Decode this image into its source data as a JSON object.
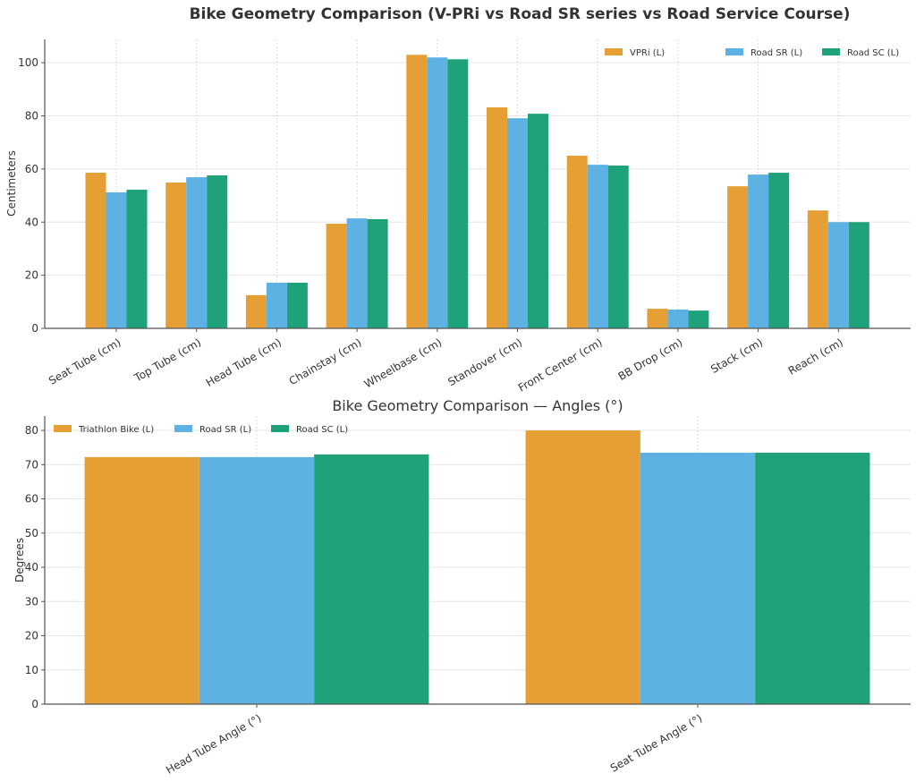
{
  "chart_data": [
    {
      "type": "bar",
      "title": "Bike Geometry Comparison (V-PRi vs Road SR series vs Road Service Course)",
      "xlabel": "",
      "ylabel": "Centimeters",
      "ylim": [
        0,
        108.8
      ],
      "yticks": [
        0,
        20,
        40,
        60,
        80,
        100
      ],
      "grid": true,
      "legend_position": "top-right",
      "categories": [
        "Seat Tube (cm)",
        "Top Tube (cm)",
        "Head Tube (cm)",
        "Chainstay (cm)",
        "Wheelbase (cm)",
        "Standover (cm)",
        "Front Center (cm)",
        "BB Drop (cm)",
        "Stack (cm)",
        "Reach (cm)"
      ],
      "series": [
        {
          "name": "VPRi (L)",
          "color": "#E69F35",
          "values": [
            58.6,
            54.9,
            12.5,
            39.4,
            103.0,
            83.2,
            65.0,
            7.4,
            53.5,
            44.4
          ]
        },
        {
          "name": "Road SR (L)",
          "color": "#5DB2E3",
          "values": [
            51.2,
            56.9,
            17.2,
            41.4,
            102.0,
            79.1,
            61.6,
            7.1,
            57.9,
            40.0
          ]
        },
        {
          "name": "Road SC (L)",
          "color": "#1FA279",
          "values": [
            52.2,
            57.6,
            17.2,
            41.1,
            101.3,
            80.8,
            61.3,
            6.7,
            58.6,
            40.0
          ]
        }
      ]
    },
    {
      "type": "bar",
      "title": "Bike Geometry Comparison — Angles (°)",
      "xlabel": "",
      "ylabel": "Degrees",
      "ylim": [
        0,
        84.2
      ],
      "yticks": [
        0,
        10,
        20,
        30,
        40,
        50,
        60,
        70,
        80
      ],
      "grid": true,
      "legend_position": "top-left",
      "categories": [
        "Head Tube Angle (°)",
        "Seat Tube Angle (°)"
      ],
      "series": [
        {
          "name": "Triathlon Bike (L)",
          "color": "#E69F35",
          "values": [
            72.2,
            80.0
          ]
        },
        {
          "name": "Road SR (L)",
          "color": "#5DB2E3",
          "values": [
            72.2,
            73.5
          ]
        },
        {
          "name": "Road SC (L)",
          "color": "#1FA279",
          "values": [
            73.0,
            73.5
          ]
        }
      ]
    }
  ]
}
